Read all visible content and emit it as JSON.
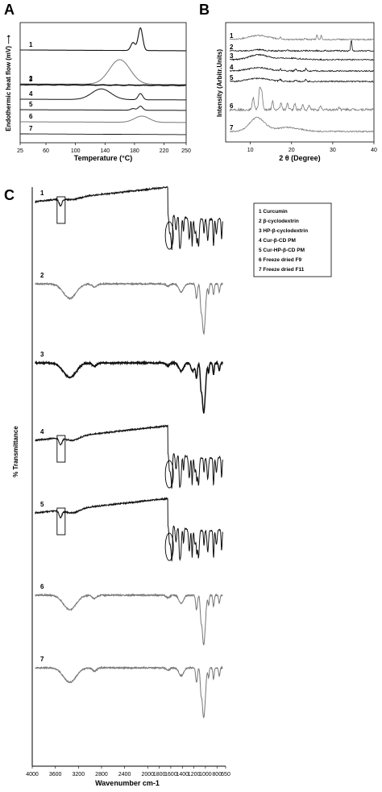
{
  "chart_data": [
    {
      "panel": "A",
      "type": "line",
      "xlabel": "Temperature (°C)",
      "ylabel": "Endothermic heat flow (mV) ⟶",
      "xlim": [
        25,
        250
      ],
      "xticks": [
        "25",
        "60",
        "100",
        "140",
        "180",
        "220",
        "250"
      ],
      "xtick_values": [
        25,
        60,
        100,
        140,
        180,
        220,
        250
      ],
      "series": [
        {
          "name": "1",
          "peaks": [
            {
              "x": 178,
              "h": 0.35
            },
            {
              "x": 188,
              "h": 1.0
            }
          ]
        },
        {
          "name": "2",
          "peaks": [
            {
              "x": 160,
              "h": 0.9
            }
          ]
        },
        {
          "name": "3",
          "peaks": []
        },
        {
          "name": "4",
          "peaks": [
            {
              "x": 135,
              "h": 0.6
            },
            {
              "x": 188,
              "h": 0.35
            }
          ]
        },
        {
          "name": "5",
          "peaks": [
            {
              "x": 178,
              "h": 0.2
            },
            {
              "x": 188,
              "h": 0.5
            }
          ]
        },
        {
          "name": "6",
          "peaks": [
            {
              "x": 190,
              "h": 0.55
            }
          ]
        },
        {
          "name": "7",
          "peaks": []
        }
      ]
    },
    {
      "panel": "B",
      "type": "line",
      "xlabel": "2 θ (Degree)",
      "ylabel": "Intensity (Arbitr.Units)",
      "xlim": [
        4,
        40
      ],
      "xticks": [
        "10",
        "20",
        "30",
        "40"
      ],
      "xtick_values": [
        10,
        20,
        30,
        40
      ],
      "series": [
        {
          "name": "1"
        },
        {
          "name": "2"
        },
        {
          "name": "3"
        },
        {
          "name": "4"
        },
        {
          "name": "5"
        },
        {
          "name": "6"
        },
        {
          "name": "7"
        }
      ]
    },
    {
      "panel": "C",
      "type": "line",
      "xlabel": "Wavenumber cm-1",
      "ylabel": "% Transmittance",
      "xlim": [
        4000,
        650
      ],
      "xticks": [
        "4000",
        "3600",
        "3200",
        "2800",
        "2400",
        "2000",
        "1800",
        "1600",
        "1400",
        "1200",
        "1000",
        "800",
        "650"
      ],
      "series": [
        {
          "name": "1"
        },
        {
          "name": "2"
        },
        {
          "name": "3"
        },
        {
          "name": "4"
        },
        {
          "name": "5"
        },
        {
          "name": "6"
        },
        {
          "name": "7"
        }
      ],
      "legend": [
        "1 Curcumin",
        "2 β-cyclodextrin",
        "3 HP-β-cyclodextrin",
        "4 Cur-β-CD PM",
        "5 Cur-HP-β-CD PM",
        "6 Freeze dried F9",
        "7 Freeze dried F11"
      ]
    }
  ],
  "panels": {
    "a": "A",
    "b": "B",
    "c": "C"
  },
  "colors": {
    "dark": "#111111",
    "grey": "#777777"
  }
}
